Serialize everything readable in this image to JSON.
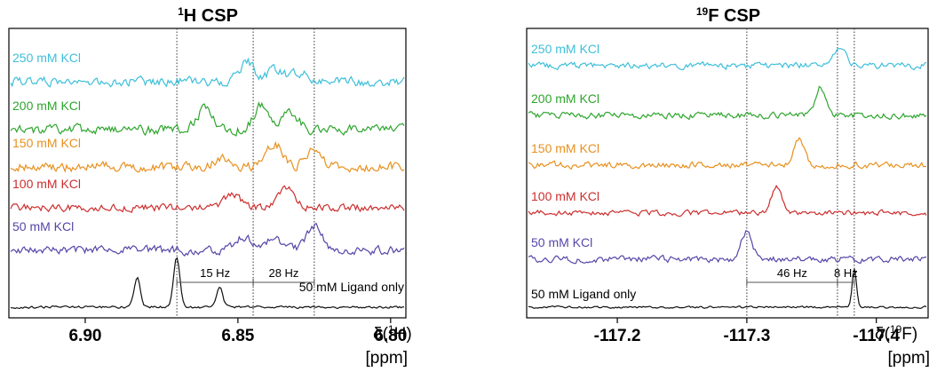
{
  "chart_data": [
    {
      "type": "line",
      "title_main": "H CSP",
      "title_sup": "1",
      "xlabel_main": "δ(",
      "xlabel_sup": "1",
      "xlabel_end": "H)",
      "xlabel_unit": "[ppm]",
      "x_reversed": true,
      "xlim": [
        6.925,
        6.795
      ],
      "ticks": [
        {
          "value": 6.9,
          "label": "6.90"
        },
        {
          "value": 6.85,
          "label": "6.85"
        },
        {
          "value": 6.8,
          "label": "6.80"
        }
      ],
      "reference_lines": [
        6.87,
        6.845,
        6.825
      ],
      "annotations": [
        {
          "label": "15 Hz",
          "from": 6.87,
          "to": 6.845
        },
        {
          "label": "28 Hz",
          "from": 6.845,
          "to": 6.825
        }
      ],
      "series": [
        {
          "name": "250 mM KCl",
          "color": "#3dbfd9",
          "peaks": [
            [
              6.847,
              1.0
            ],
            [
              6.838,
              0.6
            ],
            [
              6.83,
              0.5
            ]
          ]
        },
        {
          "name": "200 mM KCl",
          "color": "#2ea52e",
          "peaks": [
            [
              6.861,
              0.8
            ],
            [
              6.842,
              1.0
            ],
            [
              6.833,
              0.7
            ]
          ]
        },
        {
          "name": "150 mM KCl",
          "color": "#e8901e",
          "peaks": [
            [
              6.838,
              1.0
            ],
            [
              6.825,
              0.8
            ],
            [
              6.855,
              0.4
            ]
          ]
        },
        {
          "name": "100 mM KCl",
          "color": "#cc2e2e",
          "peaks": [
            [
              6.852,
              0.7
            ],
            [
              6.834,
              1.0
            ]
          ]
        },
        {
          "name": "50 mM KCl",
          "color": "#5645a8",
          "peaks": [
            [
              6.825,
              1.0
            ],
            [
              6.848,
              0.55
            ],
            [
              6.838,
              0.45
            ]
          ]
        },
        {
          "name": "50 mM Ligand only",
          "color": "#111111",
          "peaks": [
            [
              6.883,
              0.6
            ],
            [
              6.87,
              1.0
            ],
            [
              6.856,
              0.4
            ]
          ]
        }
      ]
    },
    {
      "type": "line",
      "title_main": "F CSP",
      "title_sup": "19",
      "xlabel_main": "δ(",
      "xlabel_sup": "19",
      "xlabel_end": "F)",
      "xlabel_unit": "[ppm]",
      "x_reversed": true,
      "xlim": [
        -117.13,
        -117.44
      ],
      "ticks": [
        {
          "value": -117.2,
          "label": "-117.2"
        },
        {
          "value": -117.3,
          "label": "-117.3"
        },
        {
          "value": -117.4,
          "label": "-117.4"
        }
      ],
      "reference_lines": [
        -117.3,
        -117.37,
        -117.383
      ],
      "annotations": [
        {
          "label": "46 Hz",
          "from": -117.3,
          "to": -117.37
        },
        {
          "label": "8 Hz",
          "from": -117.37,
          "to": -117.383
        }
      ],
      "series": [
        {
          "name": "250 mM KCl",
          "color": "#3dbfd9",
          "peaks": [
            [
              -117.372,
              1.0
            ]
          ]
        },
        {
          "name": "200 mM KCl",
          "color": "#2ea52e",
          "peaks": [
            [
              -117.357,
              1.0
            ]
          ]
        },
        {
          "name": "150 mM KCl",
          "color": "#e8901e",
          "peaks": [
            [
              -117.34,
              1.0
            ]
          ]
        },
        {
          "name": "100 mM KCl",
          "color": "#cc2e2e",
          "peaks": [
            [
              -117.323,
              1.0
            ]
          ]
        },
        {
          "name": "50 mM KCl",
          "color": "#5645a8",
          "peaks": [
            [
              -117.3,
              1.0
            ]
          ]
        },
        {
          "name": "50 mM Ligand only",
          "color": "#111111",
          "peaks": [
            [
              -117.383,
              1.0
            ]
          ]
        }
      ]
    }
  ]
}
